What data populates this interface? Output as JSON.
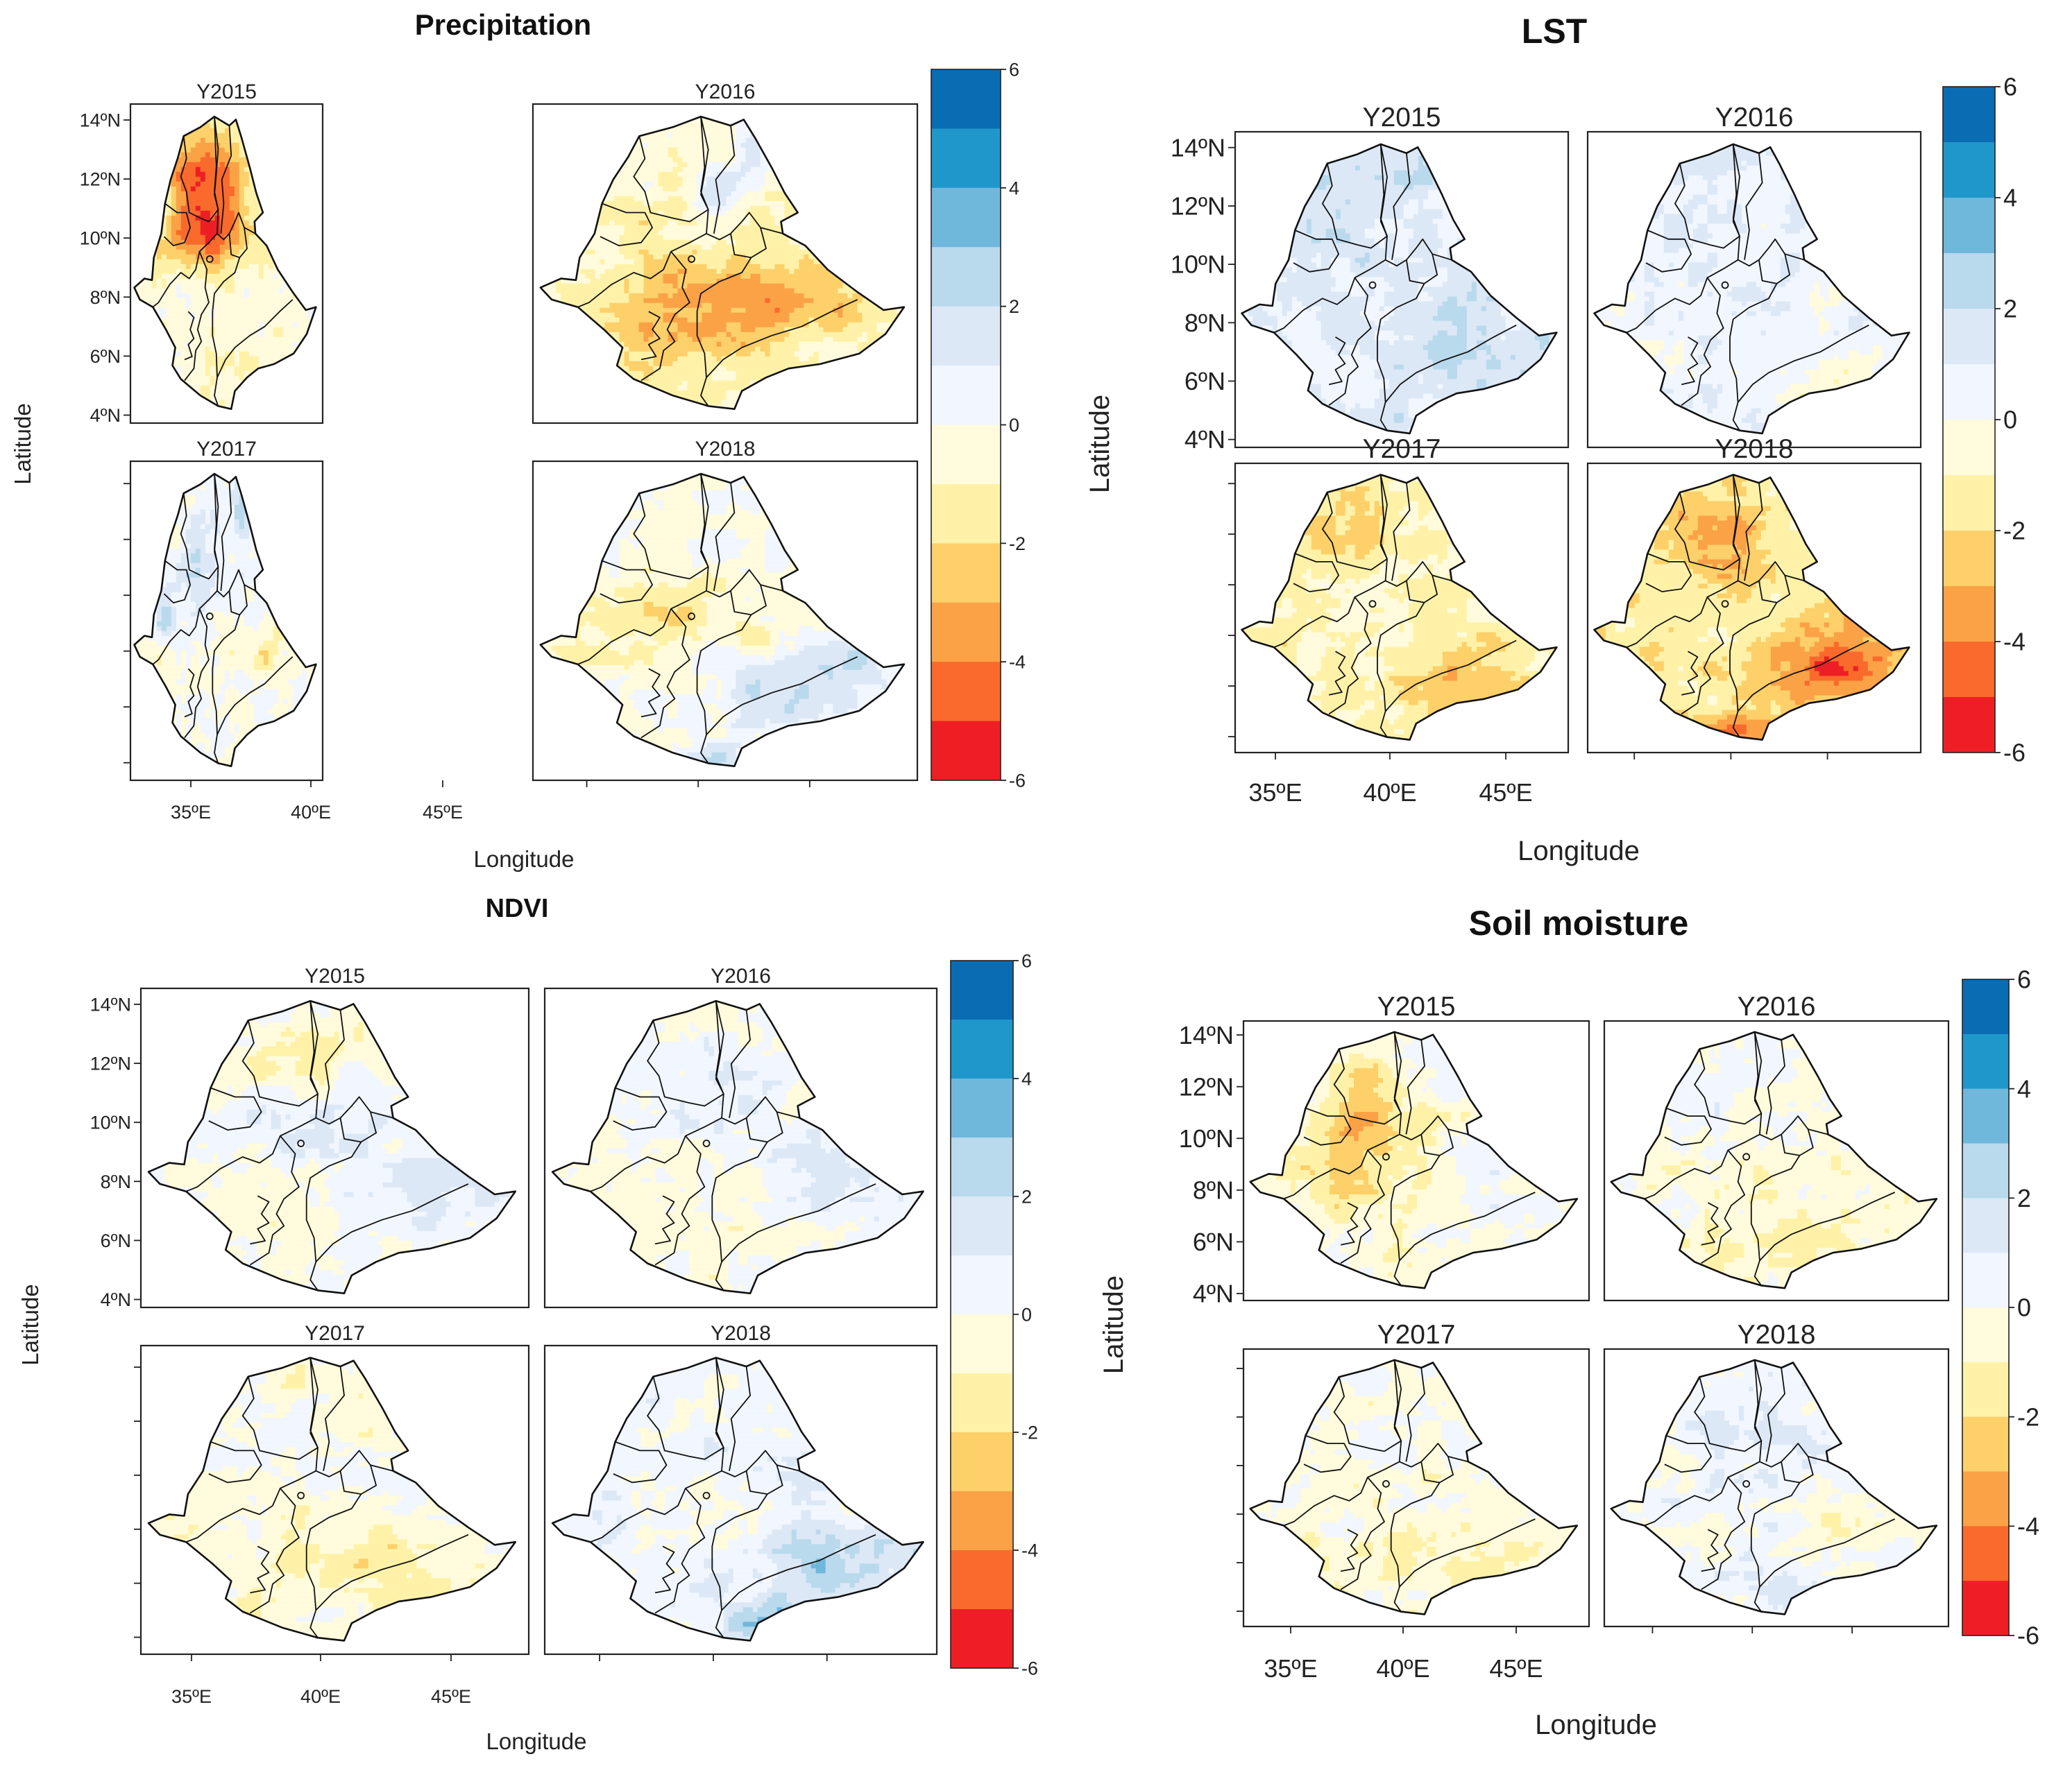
{
  "colors": {
    "scale": [
      "#ee1f24",
      "#fa6a2c",
      "#fba246",
      "#fdd06a",
      "#fff2a8",
      "#fffbdc",
      "#f1f6ff",
      "#dce8f6",
      "#b9d9ec",
      "#70b7dc",
      "#1f97cb",
      "#0a6cb2"
    ],
    "coarse_scale": [
      "#ee1f24",
      "#fa7b2e",
      "#fdd26c",
      "#fff8c6",
      "#f1f6ff",
      "#b9d9ec",
      "#1f97cb",
      "#0a6cb2"
    ]
  },
  "panels": [
    {
      "title": "Precipitation",
      "xlabel": "Longitude",
      "ylabel": "Latitude",
      "x_ticks": [
        "35ºE",
        "40ºE",
        "45ºE"
      ],
      "y_ticks": [
        "14ºN",
        "12ºN",
        "10ºN",
        "8ºN",
        "6ºN",
        "4ºN"
      ],
      "colorbar": {
        "ticks": [
          "6",
          "4",
          "2",
          "0",
          "-2",
          "-4",
          "-6"
        ]
      },
      "maps": [
        {
          "year": "Y2015",
          "pattern": "dry_north"
        },
        {
          "year": "Y2016",
          "pattern": "dry_south_wet_ne"
        },
        {
          "year": "Y2017",
          "pattern": "wet_west"
        },
        {
          "year": "Y2018",
          "pattern": "wet_south"
        }
      ]
    },
    {
      "title": "LST",
      "xlabel": "Longitude",
      "ylabel": "Latitude",
      "x_ticks": [
        "35ºE",
        "40ºE",
        "45ºE"
      ],
      "y_ticks": [
        "14ºN",
        "12ºN",
        "10ºN",
        "8ºN",
        "6ºN",
        "4ºN"
      ],
      "colorbar": {
        "ticks": [
          "6",
          "4",
          "2",
          "0",
          "-2",
          "-4",
          "-6"
        ]
      },
      "maps": [
        {
          "year": "Y2015",
          "pattern": "cool"
        },
        {
          "year": "Y2016",
          "pattern": "cool_mixed"
        },
        {
          "year": "Y2017",
          "pattern": "warm"
        },
        {
          "year": "Y2018",
          "pattern": "hot_southeast"
        }
      ]
    },
    {
      "title": "NDVI",
      "xlabel": "Longitude",
      "ylabel": "Latitude",
      "x_ticks": [
        "35ºE",
        "40ºE",
        "45ºE"
      ],
      "y_ticks": [
        "14ºN",
        "12ºN",
        "10ºN",
        "8ºN",
        "6ºN",
        "4ºN"
      ],
      "colorbar": {
        "ticks": [
          "6",
          "4",
          "2",
          "0",
          "-2",
          "-4",
          "-6"
        ]
      },
      "maps": [
        {
          "year": "Y2015",
          "pattern": "mixed_dry_north"
        },
        {
          "year": "Y2016",
          "pattern": "mixed"
        },
        {
          "year": "Y2017",
          "pattern": "mixed_dry"
        },
        {
          "year": "Y2018",
          "pattern": "wet_southeast"
        }
      ]
    },
    {
      "title": "Soil moisture",
      "xlabel": "Longitude",
      "ylabel": "Latitude",
      "x_ticks": [
        "35ºE",
        "40ºE",
        "45ºE"
      ],
      "y_ticks": [
        "14ºN",
        "12ºN",
        "10ºN",
        "8ºN",
        "6ºN",
        "4ºN"
      ],
      "colorbar": {
        "ticks": [
          "6",
          "4",
          "2",
          "0",
          "-2",
          "-4",
          "-6"
        ]
      },
      "maps": [
        {
          "year": "Y2015",
          "pattern": "dry_north_soil"
        },
        {
          "year": "Y2016",
          "pattern": "mixed_soil"
        },
        {
          "year": "Y2017",
          "pattern": "mixed_soil"
        },
        {
          "year": "Y2018",
          "pattern": "wet_soil"
        }
      ]
    }
  ]
}
